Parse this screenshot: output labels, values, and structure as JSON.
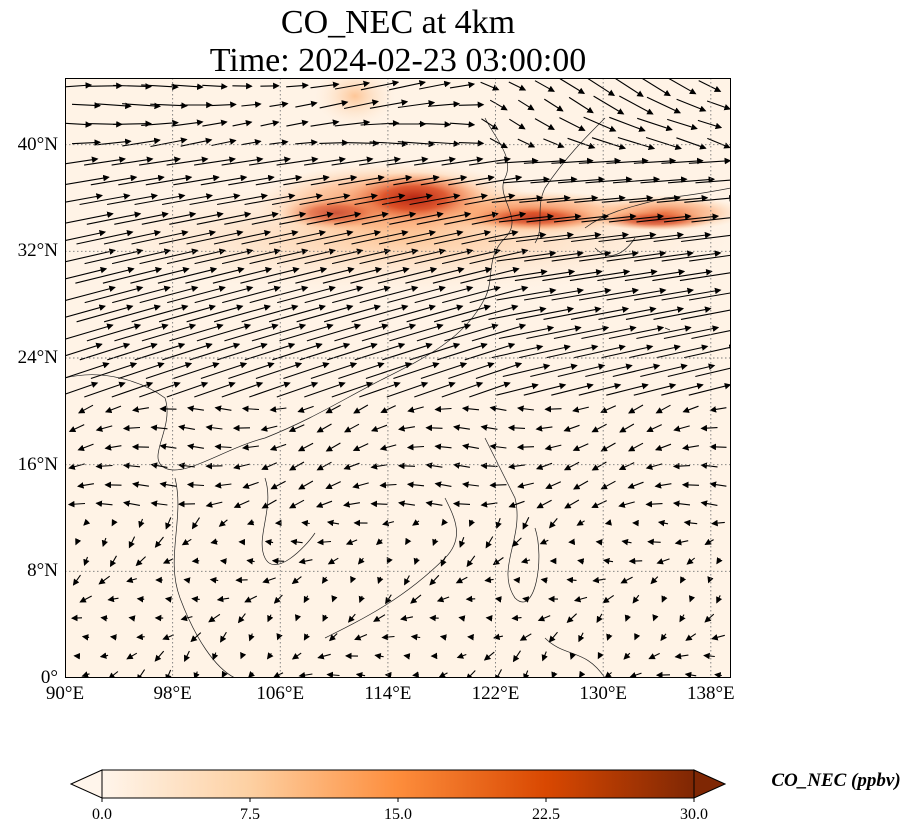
{
  "title_line1": "CO_NEC at 4km",
  "title_line2": "Time: 2024-02-23 03:00:00",
  "lat_ticks": [
    "0°",
    "8°N",
    "16°N",
    "24°N",
    "32°N",
    "40°N"
  ],
  "lon_ticks": [
    "90°E",
    "98°E",
    "106°E",
    "114°E",
    "122°E",
    "130°E",
    "138°E"
  ],
  "colorbar": {
    "label": "CO_NEC (ppbv)",
    "ticks": [
      "0.0",
      "7.5",
      "15.0",
      "22.5",
      "30.0"
    ],
    "colors": [
      "#fff5eb",
      "#fdd0a2",
      "#fd8d3c",
      "#d94801",
      "#7f2704"
    ]
  },
  "map": {
    "lon_range": [
      90,
      139.5
    ],
    "lat_range": [
      0,
      45
    ],
    "gridlines": true,
    "plume_color": "#c0321b",
    "background_color": "#fff3e6",
    "plume_max_near": "114°E-118°E, 35°N-36°N"
  }
}
